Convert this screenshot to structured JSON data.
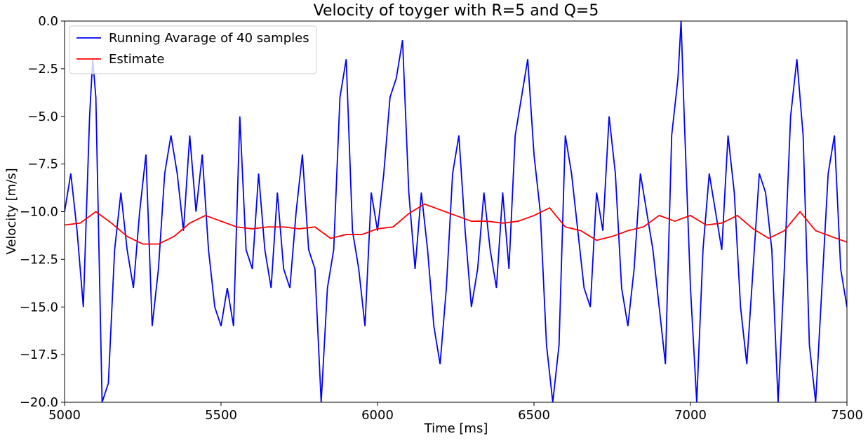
{
  "chart_data": {
    "type": "line",
    "title": "Velocity of toyger with R=5 and Q=5",
    "x_label": "Time [ms]",
    "y_label": "Velocity [m/s]",
    "xlim": [
      5000,
      7500
    ],
    "ylim": [
      -20,
      0
    ],
    "xticks": [
      5000,
      5500,
      6000,
      6500,
      7000,
      7500
    ],
    "yticks": [
      {
        "value": 0,
        "label": "0.0"
      },
      {
        "value": -2.5,
        "label": "−2.5"
      },
      {
        "value": -5,
        "label": "−5.0"
      },
      {
        "value": -7.5,
        "label": "−7.5"
      },
      {
        "value": -10,
        "label": "−10.0"
      },
      {
        "value": -12.5,
        "label": "−12.5"
      },
      {
        "value": -15,
        "label": "−15.0"
      },
      {
        "value": -17.5,
        "label": "−17.5"
      },
      {
        "value": -20,
        "label": "−20.0"
      }
    ],
    "legend": "upper left",
    "grid": false,
    "series": [
      {
        "name": "Running Avarage of 40 samples",
        "color": "#0000ff",
        "x": [
          5000,
          5020,
          5040,
          5060,
          5080,
          5090,
          5100,
          5110,
          5120,
          5140,
          5160,
          5180,
          5200,
          5220,
          5240,
          5260,
          5280,
          5300,
          5320,
          5340,
          5360,
          5380,
          5400,
          5420,
          5440,
          5460,
          5480,
          5500,
          5520,
          5540,
          5560,
          5580,
          5600,
          5620,
          5640,
          5660,
          5680,
          5700,
          5720,
          5740,
          5760,
          5780,
          5800,
          5820,
          5840,
          5860,
          5880,
          5900,
          5920,
          5940,
          5960,
          5980,
          6000,
          6020,
          6040,
          6060,
          6080,
          6100,
          6120,
          6140,
          6160,
          6180,
          6200,
          6220,
          6240,
          6260,
          6280,
          6300,
          6320,
          6340,
          6360,
          6380,
          6400,
          6420,
          6440,
          6460,
          6480,
          6500,
          6520,
          6540,
          6560,
          6580,
          6600,
          6620,
          6640,
          6660,
          6680,
          6700,
          6720,
          6740,
          6760,
          6780,
          6800,
          6820,
          6840,
          6860,
          6880,
          6900,
          6920,
          6940,
          6960,
          6970,
          6980,
          7000,
          7020,
          7040,
          7060,
          7080,
          7100,
          7120,
          7140,
          7160,
          7180,
          7200,
          7220,
          7240,
          7260,
          7280,
          7300,
          7320,
          7340,
          7360,
          7380,
          7400,
          7420,
          7440,
          7460,
          7480,
          7500
        ],
        "values": [
          -10,
          -8,
          -11,
          -15,
          -5,
          -2,
          -4,
          -12,
          -20,
          -19,
          -12,
          -9,
          -12,
          -14,
          -10,
          -7,
          -16,
          -13,
          -8,
          -6,
          -8,
          -11,
          -6,
          -10,
          -7,
          -12,
          -15,
          -16,
          -14,
          -16,
          -5,
          -12,
          -13,
          -8,
          -12,
          -14,
          -9,
          -13,
          -14,
          -10,
          -7,
          -12,
          -13,
          -20,
          -14,
          -12,
          -4,
          -2,
          -11,
          -13,
          -16,
          -9,
          -11,
          -8,
          -4,
          -3,
          -1,
          -9,
          -13,
          -9,
          -12,
          -16,
          -18,
          -14,
          -8,
          -6,
          -11,
          -15,
          -13,
          -9,
          -12,
          -14,
          -9,
          -13,
          -6,
          -4,
          -2,
          -7,
          -10,
          -17,
          -20,
          -17,
          -6,
          -8,
          -11,
          -14,
          -15,
          -9,
          -11,
          -5,
          -8,
          -14,
          -16,
          -13,
          -8,
          -10,
          -12,
          -15,
          -18,
          -6,
          -3,
          0,
          -5,
          -14,
          -20,
          -12,
          -8,
          -10,
          -12,
          -6,
          -9,
          -15,
          -18,
          -13,
          -8,
          -9,
          -12,
          -20,
          -13,
          -5,
          -2,
          -6,
          -17,
          -20,
          -14,
          -8,
          -6,
          -13,
          -15
        ]
      },
      {
        "name": "Estimate",
        "color": "#ff0000",
        "x": [
          5000,
          5050,
          5100,
          5150,
          5200,
          5250,
          5300,
          5350,
          5400,
          5450,
          5500,
          5550,
          5600,
          5650,
          5700,
          5750,
          5800,
          5850,
          5900,
          5950,
          6000,
          6050,
          6100,
          6150,
          6200,
          6250,
          6300,
          6350,
          6400,
          6450,
          6500,
          6550,
          6600,
          6650,
          6700,
          6750,
          6800,
          6850,
          6900,
          6950,
          7000,
          7050,
          7100,
          7150,
          7200,
          7250,
          7300,
          7350,
          7400,
          7450,
          7500
        ],
        "values": [
          -10.7,
          -10.6,
          -10,
          -10.6,
          -11.3,
          -11.7,
          -11.7,
          -11.3,
          -10.6,
          -10.2,
          -10.5,
          -10.8,
          -10.9,
          -10.8,
          -10.8,
          -10.9,
          -10.8,
          -11.4,
          -11.2,
          -11.2,
          -10.9,
          -10.8,
          -10.1,
          -9.6,
          -9.9,
          -10.2,
          -10.5,
          -10.5,
          -10.6,
          -10.5,
          -10.2,
          -9.8,
          -10.8,
          -11,
          -11.5,
          -11.3,
          -11,
          -10.8,
          -10.2,
          -10.5,
          -10.2,
          -10.7,
          -10.6,
          -10.2,
          -10.9,
          -11.4,
          -11,
          -10,
          -11,
          -11.3,
          -11.6
        ]
      }
    ]
  }
}
